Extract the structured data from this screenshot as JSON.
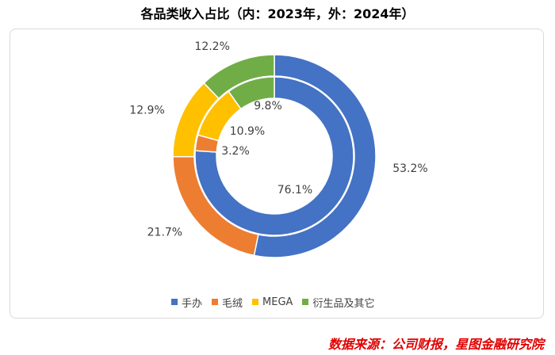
{
  "chart_data": {
    "type": "pie",
    "title": "各品类收入占比（内：2023年，外：2024年）",
    "categories": [
      "手办",
      "毛绒",
      "MEGA",
      "衍生品及其它"
    ],
    "colors": [
      "#4472C4",
      "#ED7D31",
      "#FFC000",
      "#70AD47"
    ],
    "series": [
      {
        "ring": "outer",
        "values": [
          53.2,
          21.7,
          12.9,
          12.2
        ],
        "labels": [
          "53.2%",
          "21.7%",
          "12.9%",
          "12.2%"
        ]
      },
      {
        "ring": "inner",
        "values": [
          76.1,
          3.2,
          10.9,
          9.8
        ],
        "labels": [
          "76.1%",
          "3.2%",
          "10.9%",
          "9.8%"
        ]
      }
    ],
    "legend_position": "bottom"
  },
  "source": "数据来源：公司财报，星图金融研究院"
}
